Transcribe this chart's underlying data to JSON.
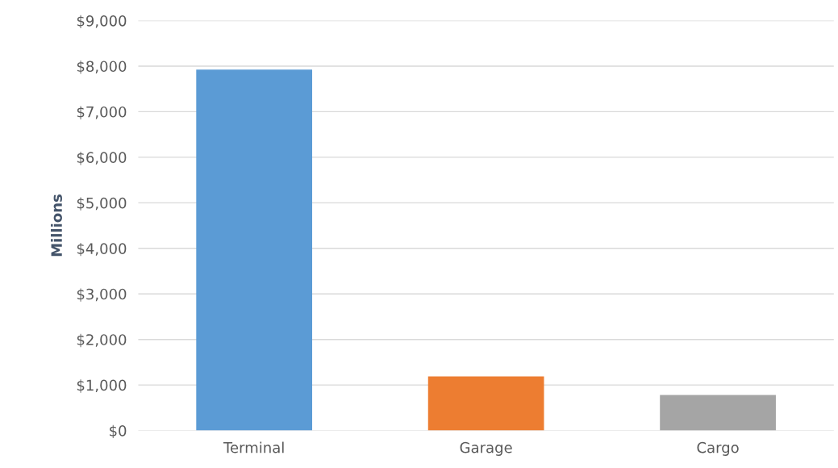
{
  "chart_data": {
    "type": "bar",
    "ylabel": "Millions",
    "categories": [
      "Terminal",
      "Garage",
      "Cargo"
    ],
    "values": [
      7925,
      1190,
      780
    ],
    "colors": [
      "#5b9bd5",
      "#ed7d31",
      "#a5a5a5"
    ],
    "ylim": [
      0,
      9000
    ],
    "yticks": [
      {
        "value": 0,
        "label": "$0"
      },
      {
        "value": 1000,
        "label": "$1,000"
      },
      {
        "value": 2000,
        "label": "$2,000"
      },
      {
        "value": 3000,
        "label": "$3,000"
      },
      {
        "value": 4000,
        "label": "$4,000"
      },
      {
        "value": 5000,
        "label": "$5,000"
      },
      {
        "value": 6000,
        "label": "$6,000"
      },
      {
        "value": 7000,
        "label": "$7,000"
      },
      {
        "value": 8000,
        "label": "$8,000"
      },
      {
        "value": 9000,
        "label": "$9,000"
      }
    ],
    "grid": "y"
  }
}
